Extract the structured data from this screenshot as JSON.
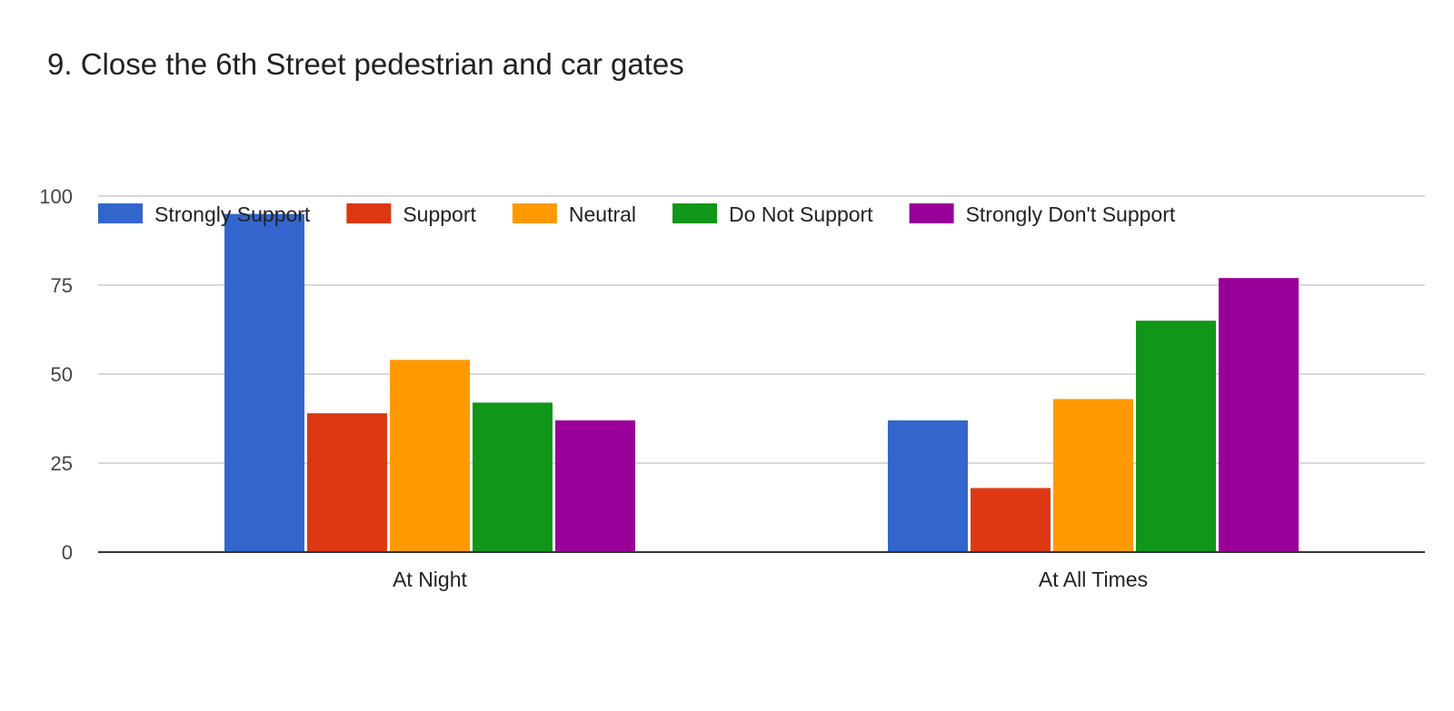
{
  "chart_data": {
    "type": "bar",
    "title": "9. Close the 6th Street pedestrian and car gates",
    "xlabel": "",
    "ylabel": "",
    "categories": [
      "At Night",
      "At All Times"
    ],
    "series": [
      {
        "name": "Strongly Support",
        "color": "#3366cc",
        "values": [
          95,
          37
        ]
      },
      {
        "name": "Support",
        "color": "#dc3912",
        "values": [
          39,
          18
        ]
      },
      {
        "name": "Neutral",
        "color": "#ff9900",
        "values": [
          54,
          43
        ]
      },
      {
        "name": "Do Not Support",
        "color": "#109618",
        "values": [
          42,
          65
        ]
      },
      {
        "name": "Strongly Don't Support",
        "color": "#990099",
        "values": [
          37,
          77
        ]
      }
    ],
    "ylim": [
      0,
      100
    ],
    "yticks": [
      "0",
      "25",
      "50",
      "75",
      "100"
    ],
    "grid": true,
    "legend_position": "top"
  }
}
